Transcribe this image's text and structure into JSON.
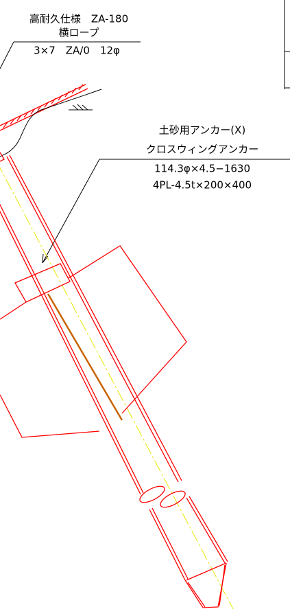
{
  "labels": [
    {
      "lines": [
        "高耐久仕様　ZA-180",
        "横ロープ",
        "3×7　ZA/0　12φ"
      ]
    },
    {
      "lines": [
        "土砂用アンカー(X)",
        "クロスウィングアンカー",
        "114.3φ×4.5−1630",
        "4PL-4.5t×200×400"
      ]
    }
  ]
}
